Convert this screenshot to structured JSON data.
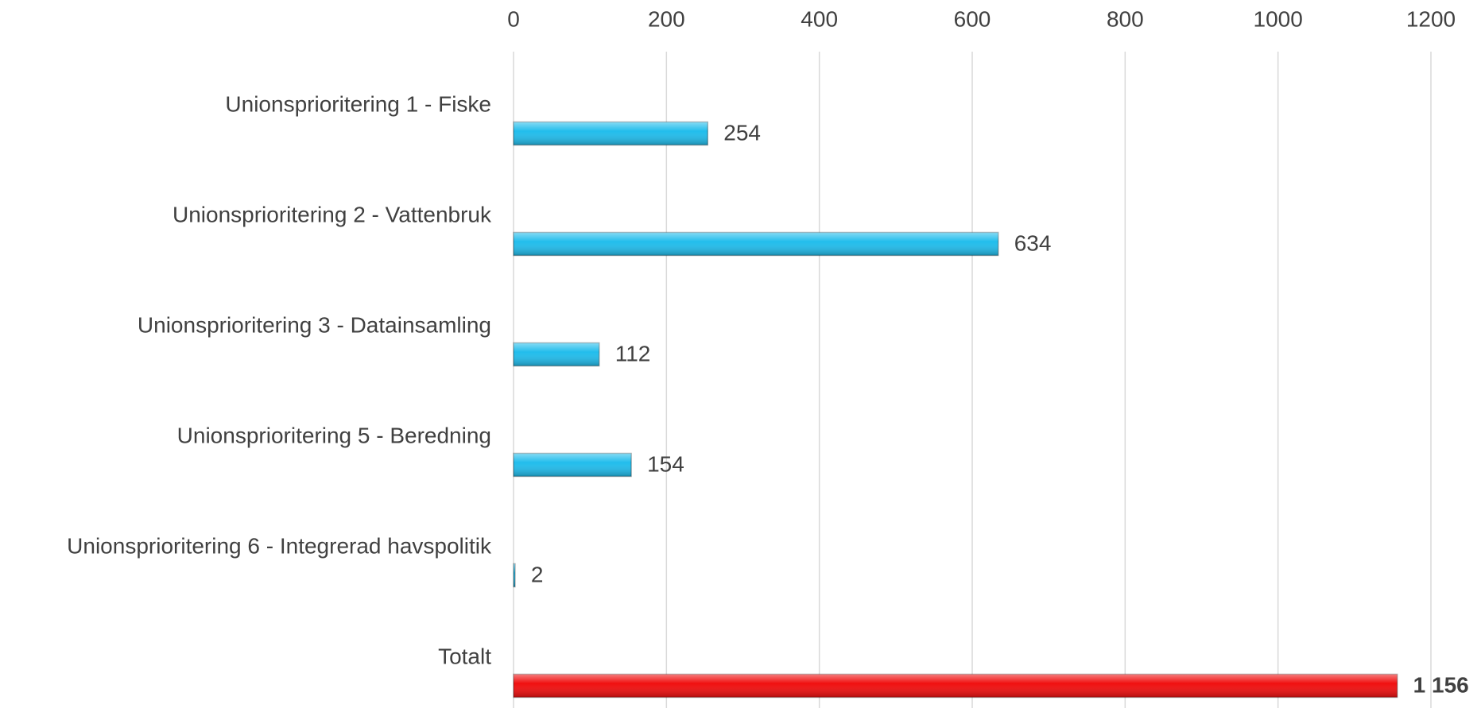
{
  "chart_data": {
    "type": "bar",
    "orientation": "horizontal",
    "categories": [
      "Unionsprioritering 1 - Fiske",
      "Unionsprioritering 2 - Vattenbruk",
      "Unionsprioritering 3 - Datainsamling",
      "Unionsprioritering 5 - Beredning",
      "Unionsprioritering 6 - Integrerad havspolitik",
      "Totalt"
    ],
    "values": [
      254,
      634,
      112,
      154,
      2,
      1156
    ],
    "value_labels": [
      "254",
      "634",
      "112",
      "154",
      "2",
      "1 156"
    ],
    "colors": [
      "#22bdec",
      "#22bdec",
      "#22bdec",
      "#22bdec",
      "#22bdec",
      "#f01010"
    ],
    "xlim": [
      0,
      1200
    ],
    "xticks": [
      0,
      200,
      400,
      600,
      800,
      1000,
      1200
    ],
    "grid": true
  }
}
